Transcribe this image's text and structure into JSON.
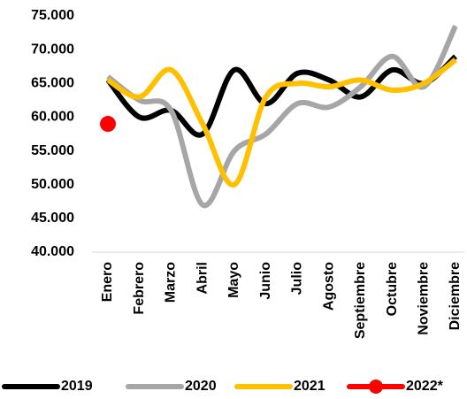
{
  "chart_data": {
    "type": "line",
    "categories": [
      "Enero",
      "Febrero",
      "Marzo",
      "Abril",
      "Mayo",
      "Junio",
      "Julio",
      "Agosto",
      "Septiembre",
      "Octubre",
      "Noviembre",
      "Diciembre"
    ],
    "series": [
      {
        "name": "2019",
        "color": "#000000",
        "values": [
          65500,
          60000,
          61000,
          57500,
          67000,
          62000,
          66500,
          65500,
          63000,
          67000,
          65000,
          69000
        ]
      },
      {
        "name": "2020",
        "color": "#a6a6a6",
        "values": [
          66000,
          62500,
          61000,
          47000,
          55000,
          57500,
          62000,
          61500,
          64500,
          69000,
          64500,
          73500
        ]
      },
      {
        "name": "2021",
        "color": "#ffc000",
        "values": [
          65500,
          63000,
          67000,
          59000,
          50000,
          63000,
          65000,
          64500,
          65500,
          64000,
          65000,
          68500
        ]
      },
      {
        "name": "2022*",
        "color": "#ff0000",
        "values": [
          59000,
          null,
          null,
          null,
          null,
          null,
          null,
          null,
          null,
          null,
          null,
          null
        ]
      }
    ],
    "ylim": [
      40000,
      75000
    ],
    "yticks": [
      {
        "value": 40000,
        "label": "40.000"
      },
      {
        "value": 45000,
        "label": "45.000"
      },
      {
        "value": 50000,
        "label": "50.000"
      },
      {
        "value": 55000,
        "label": "55.000"
      },
      {
        "value": 60000,
        "label": "60.000"
      },
      {
        "value": 65000,
        "label": "65.000"
      },
      {
        "value": 70000,
        "label": "70.000"
      },
      {
        "value": 75000,
        "label": "75.000"
      }
    ],
    "grid": false,
    "legend": "bottom"
  }
}
